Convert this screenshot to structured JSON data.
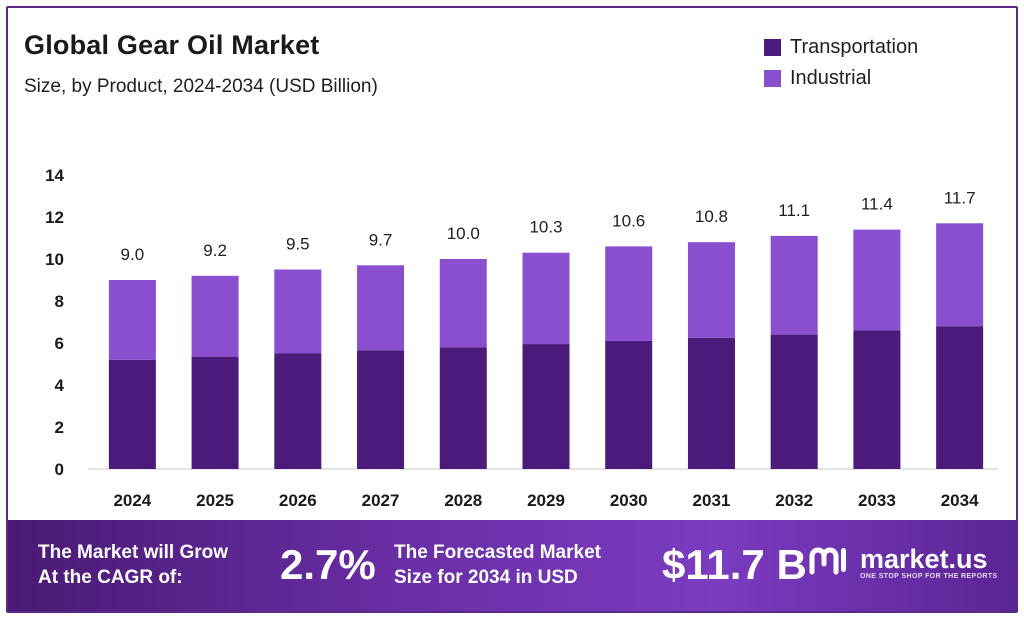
{
  "header": {
    "title": "Global Gear Oil Market",
    "subtitle": "Size, by Product, 2024-2034 (USD Billion)"
  },
  "legend": [
    {
      "label": "Transportation",
      "color": "#4b1a7a"
    },
    {
      "label": "Industrial",
      "color": "#8a4fcf"
    }
  ],
  "chart_data": {
    "type": "bar",
    "stacked": true,
    "title": "Global Gear Oil Market",
    "subtitle": "Size, by Product, 2024-2034 (USD Billion)",
    "categories": [
      "2024",
      "2025",
      "2026",
      "2027",
      "2028",
      "2029",
      "2030",
      "2031",
      "2032",
      "2033",
      "2034"
    ],
    "series": [
      {
        "name": "Transportation",
        "color": "#4b1a7a",
        "values": [
          5.2,
          5.35,
          5.5,
          5.65,
          5.8,
          5.95,
          6.1,
          6.25,
          6.4,
          6.6,
          6.8
        ]
      },
      {
        "name": "Industrial",
        "color": "#8a4fcf",
        "values": [
          3.8,
          3.85,
          4.0,
          4.05,
          4.2,
          4.35,
          4.5,
          4.55,
          4.7,
          4.8,
          4.9
        ]
      }
    ],
    "totals_labels": [
      "9.0",
      "9.2",
      "9.5",
      "9.7",
      "10.0",
      "10.3",
      "10.6",
      "10.8",
      "11.1",
      "11.4",
      "11.7"
    ],
    "yticks": [
      "0",
      "2",
      "4",
      "6",
      "8",
      "10",
      "12",
      "14"
    ],
    "ylim": [
      0,
      14
    ],
    "xlabel": "",
    "ylabel": "",
    "grid": false,
    "legend_position": "top-right"
  },
  "banner": {
    "cagr_text": "The Market will Grow\nAt the CAGR of:",
    "cagr_value": "2.7%",
    "forecast_text": "The Forecasted Market\nSize for 2034 in USD",
    "forecast_value": "$11.7 B",
    "logo_name": "market.us",
    "logo_tagline": "ONE STOP SHOP FOR THE REPORTS"
  }
}
